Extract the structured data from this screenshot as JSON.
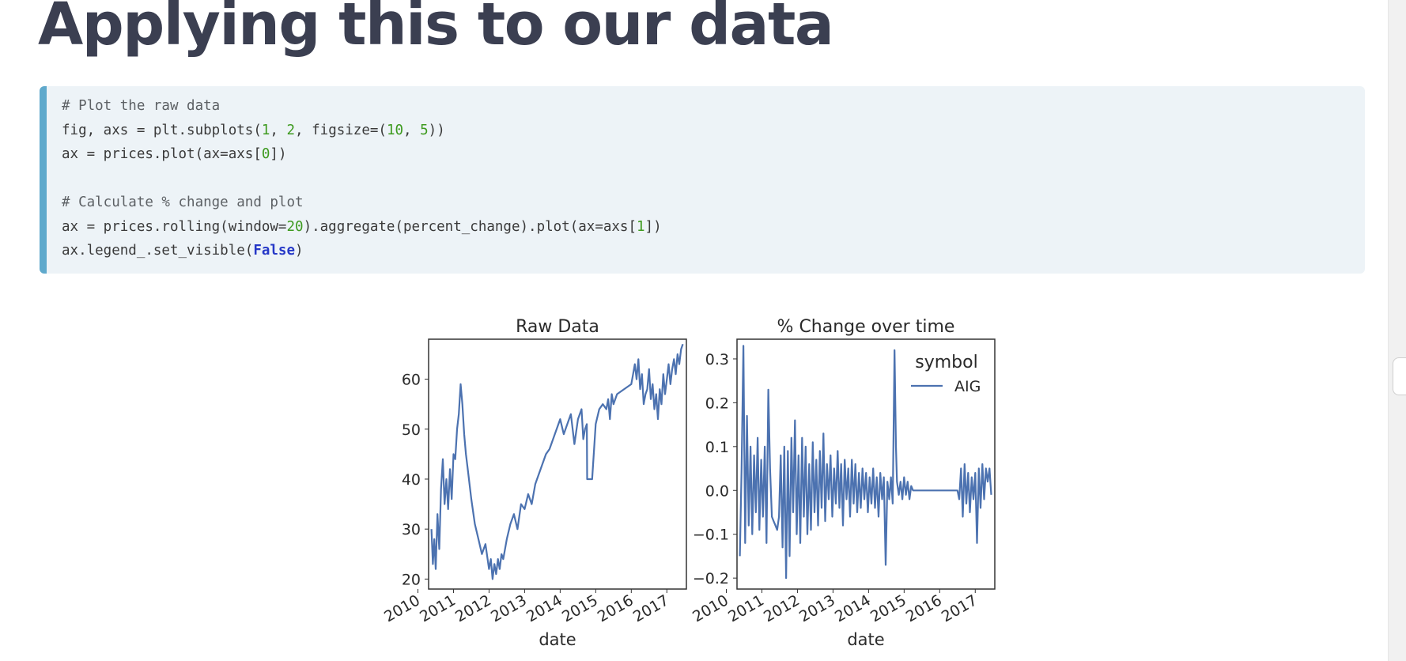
{
  "page": {
    "title": "Applying this to our data"
  },
  "code": {
    "lines": [
      [
        {
          "t": "# Plot the raw data",
          "k": "c"
        }
      ],
      [
        {
          "t": "fig, axs = plt.subplots("
        },
        {
          "t": "1",
          "k": "n"
        },
        {
          "t": ", "
        },
        {
          "t": "2",
          "k": "n"
        },
        {
          "t": ", figsize=("
        },
        {
          "t": "10",
          "k": "n"
        },
        {
          "t": ", "
        },
        {
          "t": "5",
          "k": "n"
        },
        {
          "t": "))"
        }
      ],
      [
        {
          "t": "ax = prices.plot(ax=axs["
        },
        {
          "t": "0",
          "k": "n"
        },
        {
          "t": "])"
        }
      ],
      [
        {
          "t": ""
        }
      ],
      [
        {
          "t": "# Calculate % change and plot",
          "k": "c"
        }
      ],
      [
        {
          "t": "ax = prices.rolling(window="
        },
        {
          "t": "20",
          "k": "n"
        },
        {
          "t": ").aggregate(percent_change).plot(ax=axs["
        },
        {
          "t": "1",
          "k": "n"
        },
        {
          "t": "])"
        }
      ],
      [
        {
          "t": "ax.legend_.set_visible("
        },
        {
          "t": "False",
          "k": "k"
        },
        {
          "t": ")"
        }
      ]
    ]
  },
  "colors": {
    "line": "#4c72b0",
    "title": "#3b3f51",
    "code_bg": "#edf3f7",
    "code_bar": "#5fa9cc"
  },
  "chart_data": [
    {
      "type": "line",
      "title": "Raw Data",
      "xlabel": "date",
      "ylabel": "",
      "x_ticks": [
        "2010",
        "2011",
        "2012",
        "2013",
        "2014",
        "2015",
        "2016",
        "2017"
      ],
      "y_ticks": [
        20,
        30,
        40,
        50,
        60
      ],
      "xlim": [
        2010.3,
        2017.55
      ],
      "ylim": [
        18,
        68
      ],
      "legend": null,
      "series": [
        {
          "x": [
            2010.38,
            2010.42,
            2010.46,
            2010.5,
            2010.55,
            2010.6,
            2010.65,
            2010.7,
            2010.75,
            2010.8,
            2010.85,
            2010.9,
            2010.95,
            2011.0,
            2011.05,
            2011.1,
            2011.15,
            2011.2,
            2011.25,
            2011.3,
            2011.35,
            2011.4,
            2011.5,
            2011.6,
            2011.7,
            2011.8,
            2011.9,
            2012.0,
            2012.05,
            2012.1,
            2012.15,
            2012.2,
            2012.25,
            2012.3,
            2012.35,
            2012.4,
            2012.5,
            2012.6,
            2012.7,
            2012.8,
            2012.9,
            2013.0,
            2013.1,
            2013.2,
            2013.3,
            2013.4,
            2013.5,
            2013.6,
            2013.7,
            2013.8,
            2013.9,
            2014.0,
            2014.1,
            2014.2,
            2014.3,
            2014.4,
            2014.5,
            2014.6,
            2014.65,
            2014.7,
            2014.75,
            2014.76,
            2014.8,
            2014.9,
            2015.0,
            2015.1,
            2015.2,
            2015.3,
            2015.35,
            2015.4,
            2015.45,
            2015.5,
            2015.6,
            2016.0,
            2016.05,
            2016.1,
            2016.15,
            2016.2,
            2016.25,
            2016.3,
            2016.35,
            2016.4,
            2016.45,
            2016.5,
            2016.55,
            2016.6,
            2016.65,
            2016.7,
            2016.75,
            2016.8,
            2016.85,
            2016.9,
            2016.95,
            2017.0,
            2017.05,
            2017.1,
            2017.15,
            2017.2,
            2017.25,
            2017.3,
            2017.35,
            2017.4,
            2017.45
          ],
          "y": [
            30,
            23,
            28,
            22,
            33,
            26,
            38,
            44,
            35,
            40,
            34,
            42,
            36,
            45,
            44,
            50,
            53,
            59,
            55,
            49,
            45,
            42,
            36,
            31,
            28,
            25,
            27,
            22,
            24,
            20,
            23,
            21,
            24,
            22,
            25,
            24,
            28,
            31,
            33,
            30,
            35,
            34,
            37,
            35,
            39,
            41,
            43,
            45,
            46,
            48,
            50,
            52,
            49,
            51,
            53,
            47,
            52,
            54,
            48,
            50,
            51,
            40,
            40,
            40,
            51,
            54,
            55,
            54,
            56,
            52,
            57,
            55,
            57,
            59,
            61,
            63,
            60,
            64,
            58,
            61,
            55,
            57,
            58,
            62,
            56,
            59,
            54,
            57,
            52,
            58,
            55,
            61,
            57,
            60,
            63,
            59,
            62,
            64,
            61,
            65,
            63,
            66,
            67
          ]
        }
      ]
    },
    {
      "type": "line",
      "title": "% Change over time",
      "xlabel": "date",
      "ylabel": "",
      "x_ticks": [
        "2010",
        "2011",
        "2012",
        "2013",
        "2014",
        "2015",
        "2016",
        "2017"
      ],
      "y_ticks": [
        "−0.2",
        "−0.1",
        "0.0",
        "0.1",
        "0.2",
        "0.3"
      ],
      "xlim": [
        2010.3,
        2017.55
      ],
      "ylim": [
        -0.225,
        0.345
      ],
      "legend": {
        "title": "symbol",
        "entries": [
          "AIG"
        ],
        "position": "top-right"
      },
      "series": [
        {
          "name": "AIG",
          "x": [
            2010.38,
            2010.43,
            2010.48,
            2010.53,
            2010.58,
            2010.63,
            2010.68,
            2010.73,
            2010.78,
            2010.83,
            2010.88,
            2010.93,
            2010.98,
            2011.03,
            2011.08,
            2011.13,
            2011.18,
            2011.23,
            2011.28,
            2011.33,
            2011.38,
            2011.43,
            2011.48,
            2011.53,
            2011.58,
            2011.63,
            2011.68,
            2011.73,
            2011.78,
            2011.83,
            2011.88,
            2011.93,
            2011.98,
            2012.03,
            2012.08,
            2012.13,
            2012.18,
            2012.23,
            2012.28,
            2012.33,
            2012.38,
            2012.43,
            2012.48,
            2012.53,
            2012.58,
            2012.63,
            2012.68,
            2012.73,
            2012.78,
            2012.83,
            2012.88,
            2012.93,
            2012.98,
            2013.03,
            2013.08,
            2013.13,
            2013.18,
            2013.23,
            2013.28,
            2013.33,
            2013.38,
            2013.43,
            2013.48,
            2013.53,
            2013.58,
            2013.63,
            2013.68,
            2013.73,
            2013.78,
            2013.83,
            2013.88,
            2013.93,
            2013.98,
            2014.03,
            2014.08,
            2014.13,
            2014.18,
            2014.23,
            2014.28,
            2014.33,
            2014.38,
            2014.43,
            2014.48,
            2014.53,
            2014.58,
            2014.63,
            2014.68,
            2014.73,
            2014.77,
            2014.8,
            2014.85,
            2014.9,
            2014.95,
            2015.0,
            2015.05,
            2015.1,
            2015.15,
            2015.2,
            2015.25,
            2015.3,
            2015.35,
            2015.4,
            2015.45,
            2015.5,
            2015.55,
            2015.6,
            2015.65,
            2015.7,
            2015.75,
            2015.8,
            2015.85,
            2015.9,
            2015.95,
            2016.0,
            2016.05,
            2016.1,
            2016.15,
            2016.2,
            2016.25,
            2016.3,
            2016.35,
            2016.4,
            2016.45,
            2016.5,
            2016.55,
            2016.6,
            2016.65,
            2016.7,
            2016.75,
            2016.8,
            2016.85,
            2016.9,
            2016.95,
            2017.0,
            2017.05,
            2017.1,
            2017.15,
            2017.2,
            2017.25,
            2017.3,
            2017.35,
            2017.4,
            2017.45
          ],
          "y": [
            -0.15,
            0.05,
            0.33,
            -0.12,
            0.17,
            -0.08,
            0.1,
            -0.1,
            0.08,
            -0.05,
            0.12,
            -0.09,
            0.07,
            -0.06,
            0.1,
            -0.12,
            0.23,
            0.05,
            -0.06,
            -0.07,
            -0.08,
            -0.09,
            -0.06,
            0.08,
            -0.13,
            0.1,
            -0.2,
            0.09,
            -0.15,
            0.12,
            -0.05,
            0.16,
            -0.1,
            0.08,
            -0.12,
            0.12,
            -0.06,
            0.1,
            -0.1,
            0.06,
            -0.09,
            0.11,
            -0.05,
            0.07,
            -0.08,
            0.09,
            -0.04,
            0.13,
            -0.07,
            0.06,
            -0.02,
            0.08,
            -0.06,
            0.05,
            -0.03,
            0.09,
            -0.04,
            0.06,
            -0.08,
            0.07,
            -0.02,
            0.05,
            -0.06,
            0.07,
            -0.03,
            0.06,
            -0.05,
            0.04,
            -0.04,
            0.05,
            -0.02,
            0.04,
            -0.05,
            0.03,
            -0.03,
            0.05,
            -0.04,
            0.03,
            -0.06,
            0.04,
            -0.02,
            0.03,
            -0.17,
            0.02,
            -0.02,
            0.03,
            -0.03,
            0.32,
            0.1,
            0.02,
            -0.01,
            0.02,
            -0.02,
            0.03,
            -0.01,
            0.02,
            -0.02,
            0.01,
            0.0,
            0.0,
            0.0,
            0.0,
            0.0,
            0.0,
            0.0,
            0.0,
            0.0,
            0.0,
            0.0,
            0.0,
            0.0,
            0.0,
            0.0,
            0.0,
            0.0,
            0.0,
            0.0,
            0.0,
            0.0,
            0.0,
            0.0,
            0.0,
            0.0,
            0.0,
            -0.02,
            0.05,
            -0.06,
            0.06,
            -0.03,
            0.04,
            -0.05,
            0.03,
            -0.02,
            0.04,
            -0.12,
            0.05,
            -0.04,
            0.06,
            -0.02,
            0.05,
            0.02,
            0.05,
            -0.01
          ]
        }
      ]
    }
  ]
}
